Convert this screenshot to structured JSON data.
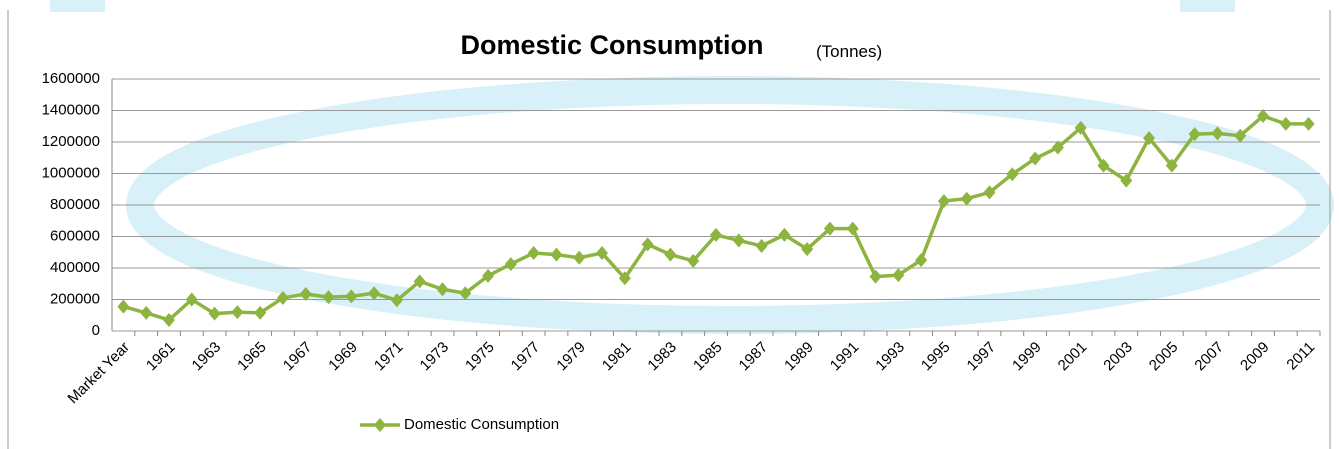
{
  "chart_data": {
    "type": "line",
    "title": "Domestic Consumption",
    "subtitle": "(Tonnes)",
    "categories": [
      "Market Year",
      null,
      "1961",
      null,
      "1963",
      null,
      "1965",
      null,
      "1967",
      null,
      "1969",
      null,
      "1971",
      null,
      "1973",
      null,
      "1975",
      null,
      "1977",
      null,
      "1979",
      null,
      "1981",
      null,
      "1983",
      null,
      "1985",
      null,
      "1987",
      null,
      "1989",
      null,
      "1991",
      null,
      "1993",
      null,
      "1995",
      null,
      "1997",
      null,
      "1999",
      null,
      "2001",
      null,
      "2003",
      null,
      "2005",
      null,
      "2007",
      null,
      "2009",
      null,
      "2011"
    ],
    "series": [
      {
        "name": "Domestic Consumption",
        "color": "#8db43e",
        "values": [
          155000,
          115000,
          70000,
          200000,
          110000,
          120000,
          115000,
          210000,
          235000,
          215000,
          220000,
          240000,
          195000,
          315000,
          265000,
          240000,
          350000,
          425000,
          495000,
          485000,
          465000,
          495000,
          335000,
          550000,
          485000,
          445000,
          610000,
          575000,
          540000,
          610000,
          520000,
          650000,
          650000,
          345000,
          355000,
          450000,
          825000,
          840000,
          880000,
          995000,
          1095000,
          1165000,
          1290000,
          1050000,
          955000,
          1225000,
          1050000,
          1250000,
          1255000,
          1240000,
          1365000,
          1315000,
          1315000
        ]
      }
    ],
    "ylim": [
      0,
      1600000
    ],
    "yticks": [
      0,
      200000,
      400000,
      600000,
      800000,
      1000000,
      1200000,
      1400000,
      1600000
    ],
    "grid": true,
    "legend": "bottom"
  }
}
